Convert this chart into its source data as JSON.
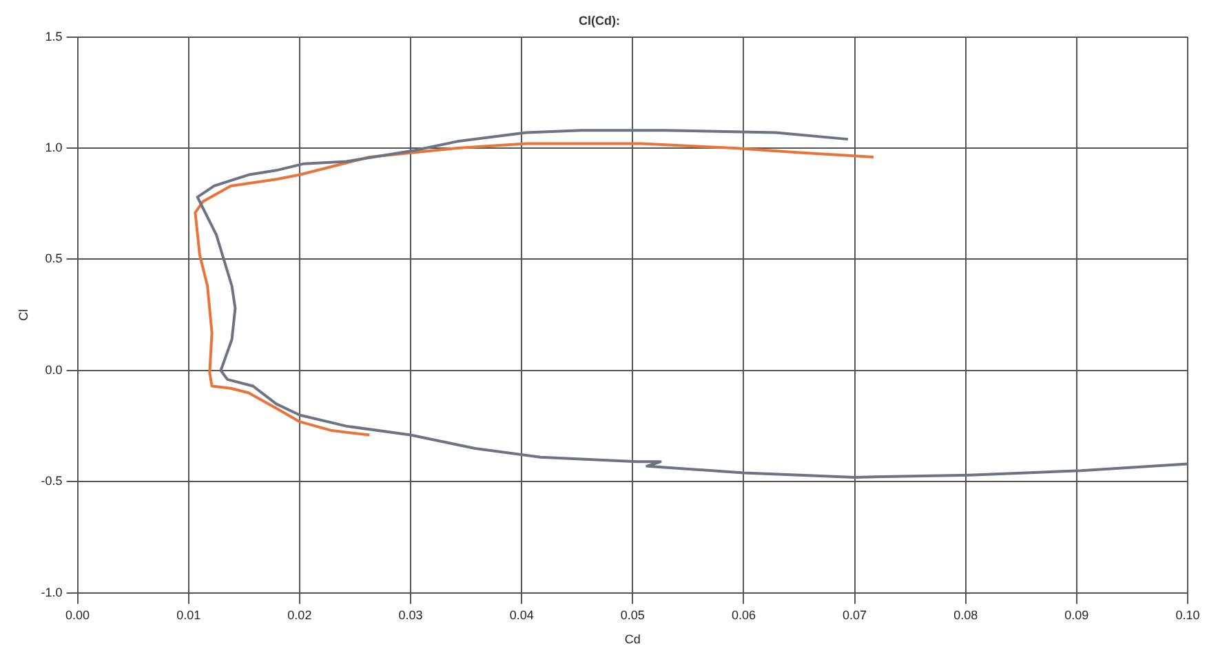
{
  "chart_data": {
    "type": "line",
    "title": "Cl(Cd):",
    "xlabel": "Cd",
    "ylabel": "Cl",
    "xlim": [
      0,
      0.1
    ],
    "ylim": [
      -1.0,
      1.5
    ],
    "xticks": [
      {
        "value": 0,
        "label": "0.00"
      },
      {
        "value": 0.01,
        "label": "0.01"
      },
      {
        "value": 0.02,
        "label": "0.02"
      },
      {
        "value": 0.03,
        "label": "0.03"
      },
      {
        "value": 0.04,
        "label": "0.04"
      },
      {
        "value": 0.05,
        "label": "0.05"
      },
      {
        "value": 0.06,
        "label": "0.06"
      },
      {
        "value": 0.07,
        "label": "0.07"
      },
      {
        "value": 0.08,
        "label": "0.08"
      },
      {
        "value": 0.09,
        "label": "0.09"
      },
      {
        "value": 0.1,
        "label": "0.10"
      }
    ],
    "yticks": [
      {
        "value": -1.0,
        "label": "-1.0"
      },
      {
        "value": -0.5,
        "label": "-0.5"
      },
      {
        "value": 0,
        "label": "0.0"
      },
      {
        "value": 0.5,
        "label": "0.5"
      },
      {
        "value": 1.0,
        "label": "1.0"
      },
      {
        "value": 1.5,
        "label": "1.5"
      }
    ],
    "grid": true,
    "marker": "none",
    "line_style": "solid",
    "legend": false,
    "series": [
      {
        "color": "#6b7480",
        "x": [
          0.0694,
          0.0629,
          0.0529,
          0.0454,
          0.0404,
          0.0342,
          0.0304,
          0.0242,
          0.0204,
          0.0179,
          0.0154,
          0.0123,
          0.0108,
          0.0125,
          0.0139,
          0.0142,
          0.0139,
          0.0129,
          0.0135,
          0.0158,
          0.0179,
          0.02,
          0.0242,
          0.03,
          0.0358,
          0.0417,
          0.0504,
          0.0525,
          0.0513,
          0.06,
          0.07,
          0.0804,
          0.0904,
          0.1
        ],
        "values": [
          1.04,
          1.07,
          1.08,
          1.08,
          1.07,
          1.03,
          0.99,
          0.94,
          0.93,
          0.9,
          0.88,
          0.83,
          0.78,
          0.61,
          0.38,
          0.28,
          0.14,
          0.0,
          -0.04,
          -0.07,
          -0.15,
          -0.2,
          -0.25,
          -0.29,
          -0.35,
          -0.39,
          -0.41,
          -0.41,
          -0.43,
          -0.46,
          -0.48,
          -0.47,
          -0.45,
          -0.42
        ]
      },
      {
        "color": "#e8743b",
        "x": [
          0.0717,
          0.065,
          0.0592,
          0.0508,
          0.0404,
          0.0342,
          0.0263,
          0.02,
          0.0179,
          0.0138,
          0.0113,
          0.0106,
          0.011,
          0.0117,
          0.0121,
          0.0119,
          0.0121,
          0.0138,
          0.0154,
          0.0179,
          0.02,
          0.0229,
          0.0263
        ],
        "values": [
          0.96,
          0.98,
          1.0,
          1.02,
          1.02,
          1.0,
          0.96,
          0.88,
          0.86,
          0.83,
          0.76,
          0.71,
          0.52,
          0.38,
          0.17,
          -0.01,
          -0.07,
          -0.08,
          -0.1,
          -0.17,
          -0.23,
          -0.27,
          -0.29
        ]
      }
    ]
  }
}
